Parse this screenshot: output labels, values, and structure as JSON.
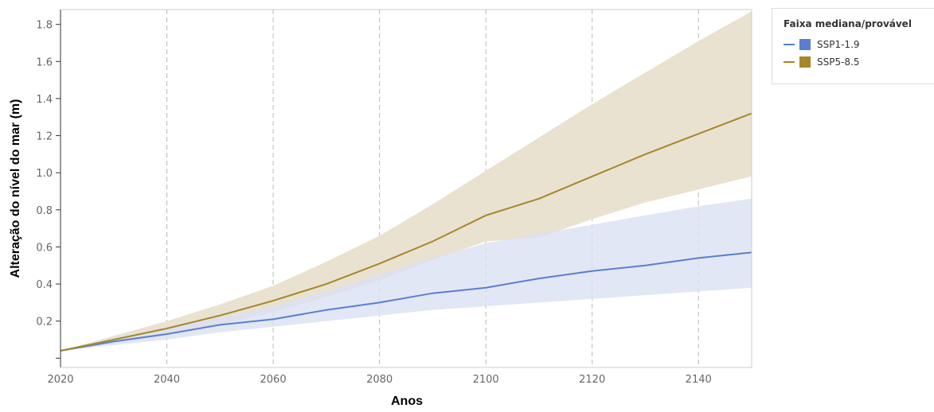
{
  "chart_data": {
    "type": "line",
    "xlabel": "Anos",
    "ylabel": "Alteração do nível do mar (m)",
    "xlim": [
      2020,
      2150
    ],
    "ylim": [
      -0.05,
      1.88
    ],
    "x_ticks": [
      2020,
      2040,
      2060,
      2080,
      2100,
      2120,
      2140
    ],
    "y_ticks": [
      0.2,
      0.4,
      0.6,
      0.8,
      1.0,
      1.2,
      1.4,
      1.6,
      1.8
    ],
    "y_tick_labels": [
      "0.2",
      "0.4",
      "0.6",
      "0.8",
      "1.0",
      "1.2",
      "1.4",
      "1.6",
      "1.8"
    ],
    "grid": "vertical dashed",
    "legend_title": "Faixa mediana/provável",
    "legend_position": "top-right",
    "x": [
      2020,
      2030,
      2040,
      2050,
      2060,
      2070,
      2080,
      2090,
      2100,
      2110,
      2120,
      2130,
      2140,
      2150
    ],
    "series": [
      {
        "name": "SSP1-1.9",
        "color": "#5b7fce",
        "band_color": "#dbe1f4",
        "median": [
          0.04,
          0.09,
          0.13,
          0.18,
          0.21,
          0.26,
          0.3,
          0.35,
          0.38,
          0.43,
          0.47,
          0.5,
          0.54,
          0.57
        ],
        "low": [
          0.04,
          0.07,
          0.1,
          0.14,
          0.17,
          0.2,
          0.23,
          0.26,
          0.28,
          0.3,
          0.32,
          0.34,
          0.36,
          0.38
        ],
        "high": [
          0.04,
          0.11,
          0.16,
          0.22,
          0.28,
          0.36,
          0.45,
          0.54,
          0.62,
          0.67,
          0.72,
          0.77,
          0.82,
          0.86
        ]
      },
      {
        "name": "SSP5-8.5",
        "color": "#a5872a",
        "band_color": "#e9e2d0",
        "median": [
          0.04,
          0.1,
          0.16,
          0.23,
          0.31,
          0.4,
          0.51,
          0.63,
          0.77,
          0.86,
          0.98,
          1.1,
          1.21,
          1.32
        ],
        "low": [
          0.04,
          0.08,
          0.12,
          0.18,
          0.25,
          0.33,
          0.42,
          0.53,
          0.63,
          0.65,
          0.75,
          0.84,
          0.91,
          0.98
        ],
        "high": [
          0.04,
          0.12,
          0.2,
          0.29,
          0.39,
          0.52,
          0.66,
          0.83,
          1.01,
          1.19,
          1.37,
          1.54,
          1.71,
          1.87
        ]
      }
    ]
  }
}
